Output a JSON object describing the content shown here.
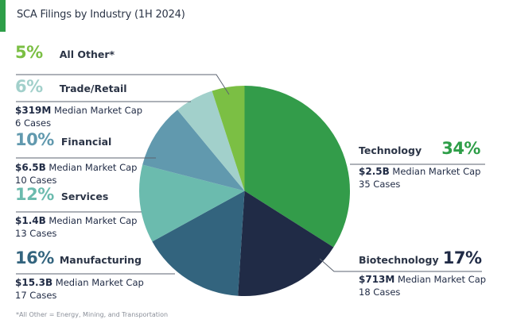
{
  "header": {
    "title": "SCA Filings by Industry (1H 2024)",
    "accent_color": "#2e9e48"
  },
  "footnote": "*All Other = Energy, Mining, and Transportation",
  "labels": {
    "other": {
      "pct": "5%",
      "name": "All Other*",
      "color": "#7bbf44"
    },
    "trade": {
      "pct": "6%",
      "name": "Trade/Retail",
      "cap": "$319M",
      "cap_label": "Median Market Cap",
      "cases": "6 Cases",
      "color": "#a2d0cb"
    },
    "financial": {
      "pct": "10%",
      "name": "Financial",
      "cap": "$6.5B",
      "cap_label": "Median Market Cap",
      "cases": "10 Cases",
      "color": "#6199ae"
    },
    "services": {
      "pct": "12%",
      "name": "Services",
      "cap": "$1.4B",
      "cap_label": "Median Market Cap",
      "cases": "13 Cases",
      "color": "#6bbbae"
    },
    "manufacturing": {
      "pct": "16%",
      "name": "Manufacturing",
      "cap": "$15.3B",
      "cap_label": "Median Market Cap",
      "cases": "17 Cases",
      "color": "#33647e"
    },
    "technology": {
      "pct": "34%",
      "name": "Technology",
      "cap": "$2.5B",
      "cap_label": "Median Market Cap",
      "cases": "35 Cases",
      "color": "#339c4a"
    },
    "biotech": {
      "pct": "17%",
      "name": "Biotechnology",
      "cap": "$713M",
      "cap_label": "Median Market Cap",
      "cases": "18 Cases",
      "color": "#202b46"
    }
  },
  "chart_data": {
    "type": "pie",
    "title": "SCA Filings by Industry (1H 2024)",
    "categories": [
      "Technology",
      "Biotechnology",
      "Manufacturing",
      "Services",
      "Financial",
      "Trade/Retail",
      "All Other*"
    ],
    "values": [
      34,
      17,
      16,
      12,
      10,
      6,
      5
    ],
    "unit": "%",
    "cases": [
      35,
      18,
      17,
      13,
      10,
      6,
      null
    ],
    "median_market_cap": [
      "$2.5B",
      "$713M",
      "$15.3B",
      "$1.4B",
      "$6.5B",
      "$319M",
      null
    ],
    "colors": [
      "#339c4a",
      "#202b46",
      "#33647e",
      "#6bbbae",
      "#6199ae",
      "#a2d0cb",
      "#7bbf44"
    ],
    "start_angle": "12 o'clock, clockwise",
    "annotations": [
      "*All Other = Energy, Mining, and Transportation"
    ],
    "legend": "none (direct labels)"
  }
}
